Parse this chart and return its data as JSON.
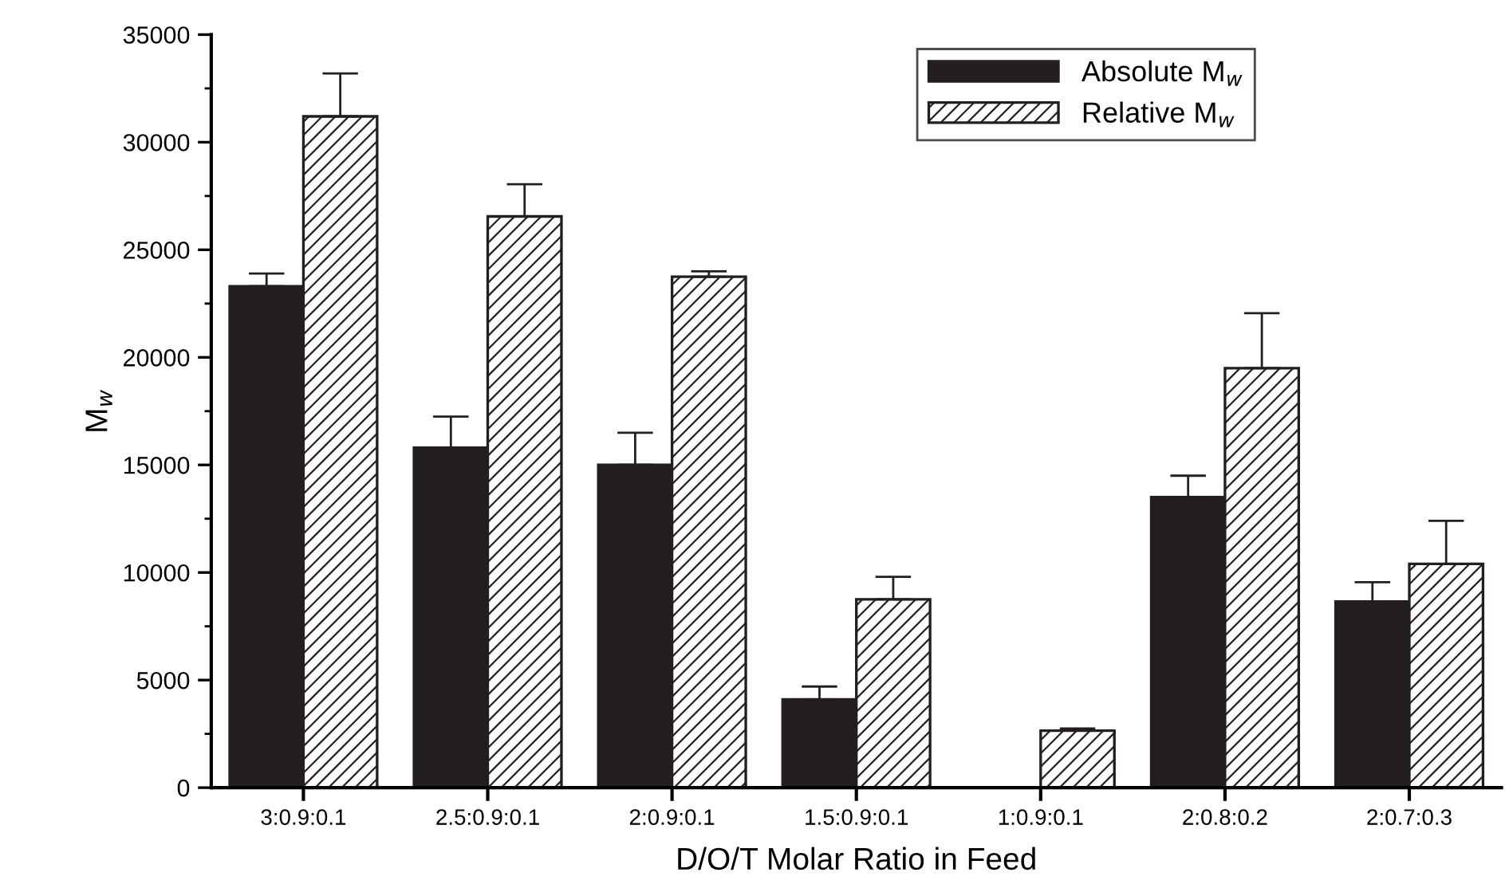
{
  "chart_data": {
    "type": "bar",
    "xlabel": "D/O/T Molar Ratio in Feed",
    "ylabel": "M$_{w}$",
    "categories": [
      "3:0.9:0.1",
      "2.5:0.9:0.1",
      "2:0.9:0.1",
      "1.5:0.9:0.1",
      "1:0.9:0.1",
      "2:0.8:0.2",
      "2:0.7:0.3"
    ],
    "series": [
      {
        "name": "Absolute M$_{w}$",
        "color": "#231f20",
        "values": [
          23300,
          15800,
          15000,
          4100,
          null,
          13500,
          8650
        ],
        "errors": [
          [
            23300,
            23900
          ],
          [
            15800,
            17250
          ],
          [
            15000,
            16500
          ],
          [
            4100,
            4700
          ],
          null,
          [
            13500,
            14500
          ],
          [
            8650,
            9550
          ]
        ]
      },
      {
        "name": "Relative M$_{w}$",
        "color": "#231f20",
        "values": [
          31200,
          26550,
          23750,
          8750,
          2650,
          19500,
          10400
        ],
        "errors": [
          [
            31200,
            33200
          ],
          [
            26550,
            28050
          ],
          [
            23750,
            24000
          ],
          [
            8750,
            9800
          ],
          [
            2650,
            2750
          ],
          [
            19500,
            22050
          ],
          [
            10400,
            12400
          ]
        ]
      }
    ],
    "ylim": [
      0,
      35000
    ],
    "yticks": [
      0,
      5000,
      10000,
      15000,
      20000,
      25000,
      30000,
      35000
    ],
    "grid": false,
    "legend": "top right"
  }
}
